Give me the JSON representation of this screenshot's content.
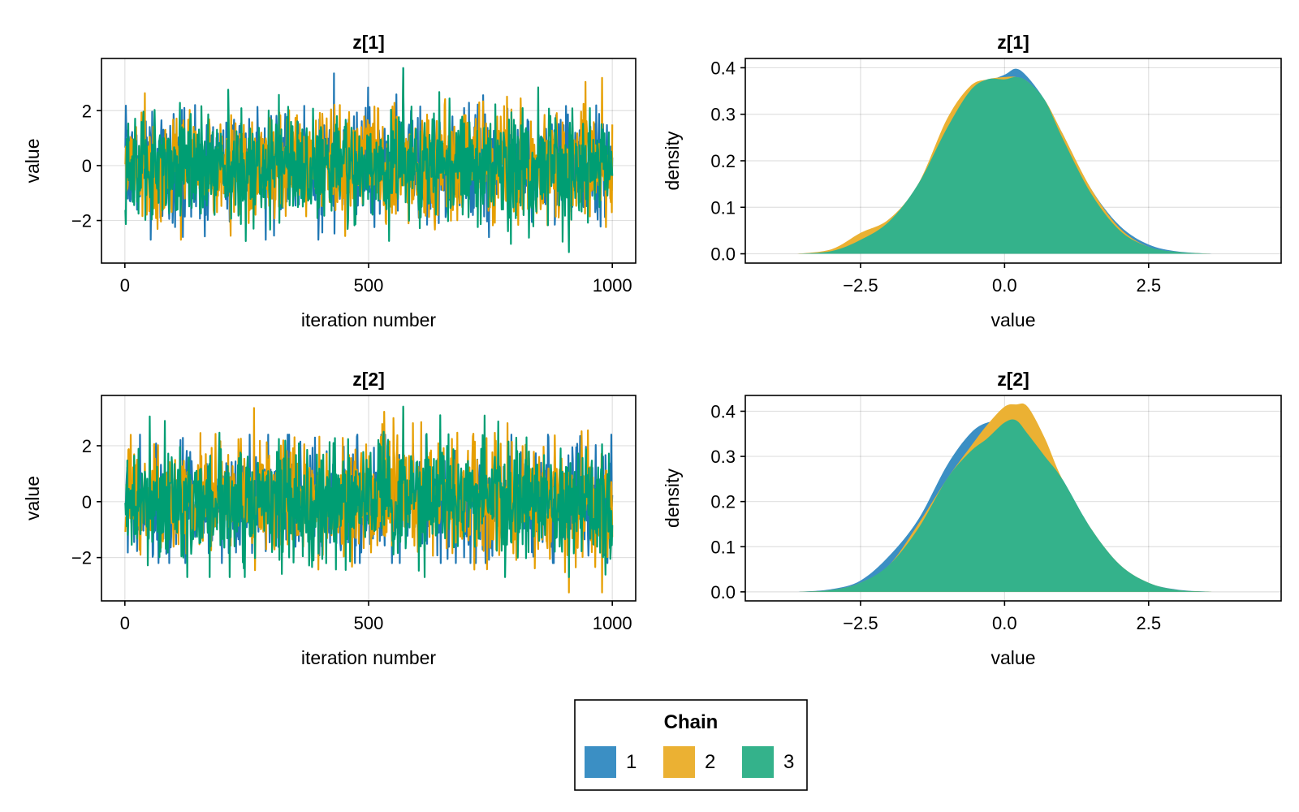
{
  "legend": {
    "title": "Chain",
    "entries": [
      {
        "label": "1",
        "color": "#3b8fc4"
      },
      {
        "label": "2",
        "color": "#ebb133"
      },
      {
        "label": "3",
        "color": "#34b28b"
      }
    ],
    "placement": "bottom-center"
  },
  "chart_data": [
    {
      "type": "line",
      "title": "z[1]",
      "xlabel": "iteration number",
      "ylabel": "value",
      "xlim": [
        -48,
        1048
      ],
      "ylim": [
        -3.55,
        3.9
      ],
      "xticks": [
        0,
        500,
        1000
      ],
      "xtick_labels": [
        "0",
        "500",
        "1000"
      ],
      "yticks": [
        -2,
        0,
        2
      ],
      "ytick_labels": [
        "−2",
        "0",
        "2"
      ],
      "grid": true,
      "n_iterations": 1000,
      "series": [
        {
          "name": "1",
          "color": "#1f77b4",
          "mean": 0.0,
          "sd": 1.0,
          "min": -2.7,
          "max": 3.55
        },
        {
          "name": "2",
          "color": "#e69f00",
          "mean": 0.0,
          "sd": 1.0,
          "min": -2.7,
          "max": 3.2
        },
        {
          "name": "3",
          "color": "#009e73",
          "mean": 0.0,
          "sd": 1.0,
          "min": -3.15,
          "max": 3.55
        }
      ]
    },
    {
      "type": "area",
      "title": "z[1]",
      "xlabel": "value",
      "ylabel": "density",
      "xlim": [
        -4.5,
        4.8
      ],
      "ylim": [
        -0.02,
        0.42
      ],
      "xticks": [
        -2.5,
        0.0,
        2.5
      ],
      "xtick_labels": [
        "−2.5",
        "0.0",
        "2.5"
      ],
      "yticks": [
        0.0,
        0.1,
        0.2,
        0.3,
        0.4
      ],
      "ytick_labels": [
        "0.0",
        "0.1",
        "0.2",
        "0.3",
        "0.4"
      ],
      "grid": true,
      "series": [
        {
          "name": "1",
          "color": "#3b8fc4",
          "x": [
            -3.6,
            -3.0,
            -2.5,
            -2.0,
            -1.5,
            -1.0,
            -0.6,
            -0.3,
            0.0,
            0.2,
            0.4,
            0.7,
            1.0,
            1.5,
            2.0,
            2.5,
            3.0,
            3.6
          ],
          "y": [
            0.0,
            0.008,
            0.035,
            0.075,
            0.14,
            0.27,
            0.35,
            0.37,
            0.385,
            0.398,
            0.38,
            0.33,
            0.26,
            0.14,
            0.06,
            0.02,
            0.005,
            0.0
          ]
        },
        {
          "name": "2",
          "color": "#ebb133",
          "x": [
            -3.6,
            -3.0,
            -2.5,
            -2.0,
            -1.5,
            -1.0,
            -0.6,
            -0.3,
            0.0,
            0.2,
            0.4,
            0.7,
            1.0,
            1.5,
            2.0,
            2.5,
            3.0,
            3.6
          ],
          "y": [
            0.0,
            0.01,
            0.045,
            0.075,
            0.15,
            0.29,
            0.36,
            0.375,
            0.38,
            0.38,
            0.37,
            0.33,
            0.26,
            0.14,
            0.055,
            0.015,
            0.004,
            0.0
          ]
        },
        {
          "name": "3",
          "color": "#34b28b",
          "x": [
            -3.6,
            -3.0,
            -2.5,
            -2.0,
            -1.5,
            -1.0,
            -0.6,
            -0.3,
            0.0,
            0.2,
            0.4,
            0.7,
            1.0,
            1.5,
            2.0,
            2.5,
            3.0,
            3.6
          ],
          "y": [
            0.0,
            0.006,
            0.03,
            0.07,
            0.15,
            0.27,
            0.35,
            0.375,
            0.375,
            0.38,
            0.37,
            0.33,
            0.25,
            0.13,
            0.05,
            0.015,
            0.004,
            0.0
          ]
        }
      ]
    },
    {
      "type": "line",
      "title": "z[2]",
      "xlabel": "iteration number",
      "ylabel": "value",
      "xlim": [
        -48,
        1048
      ],
      "ylim": [
        -3.55,
        3.8
      ],
      "xticks": [
        0,
        500,
        1000
      ],
      "xtick_labels": [
        "0",
        "500",
        "1000"
      ],
      "yticks": [
        -2,
        0,
        2
      ],
      "ytick_labels": [
        "−2",
        "0",
        "2"
      ],
      "grid": true,
      "n_iterations": 1000,
      "series": [
        {
          "name": "1",
          "color": "#1f77b4",
          "mean": 0.0,
          "sd": 1.0,
          "min": -2.2,
          "max": 2.4
        },
        {
          "name": "2",
          "color": "#e69f00",
          "mean": 0.1,
          "sd": 1.0,
          "min": -3.25,
          "max": 3.35
        },
        {
          "name": "3",
          "color": "#009e73",
          "mean": 0.0,
          "sd": 1.0,
          "min": -2.7,
          "max": 3.4
        }
      ]
    },
    {
      "type": "area",
      "title": "z[2]",
      "xlabel": "value",
      "ylabel": "density",
      "xlim": [
        -4.5,
        4.8
      ],
      "ylim": [
        -0.02,
        0.435
      ],
      "xticks": [
        -2.5,
        0.0,
        2.5
      ],
      "xtick_labels": [
        "−2.5",
        "0.0",
        "2.5"
      ],
      "yticks": [
        0.0,
        0.1,
        0.2,
        0.3,
        0.4
      ],
      "ytick_labels": [
        "0.0",
        "0.1",
        "0.2",
        "0.3",
        "0.4"
      ],
      "grid": true,
      "series": [
        {
          "name": "1",
          "color": "#3b8fc4",
          "x": [
            -3.6,
            -3.0,
            -2.5,
            -2.0,
            -1.5,
            -1.0,
            -0.6,
            -0.3,
            0.0,
            0.2,
            0.4,
            0.7,
            1.0,
            1.5,
            2.0,
            2.5,
            3.0,
            3.6
          ],
          "y": [
            0.0,
            0.006,
            0.025,
            0.08,
            0.16,
            0.28,
            0.35,
            0.375,
            0.375,
            0.36,
            0.34,
            0.3,
            0.25,
            0.14,
            0.06,
            0.02,
            0.005,
            0.0
          ]
        },
        {
          "name": "2",
          "color": "#ebb133",
          "x": [
            -3.6,
            -3.0,
            -2.5,
            -2.0,
            -1.5,
            -1.0,
            -0.6,
            -0.3,
            0.0,
            0.2,
            0.4,
            0.7,
            1.0,
            1.5,
            2.0,
            2.5,
            3.0,
            3.6
          ],
          "y": [
            0.0,
            0.004,
            0.02,
            0.06,
            0.15,
            0.25,
            0.32,
            0.37,
            0.41,
            0.415,
            0.41,
            0.34,
            0.25,
            0.14,
            0.06,
            0.02,
            0.004,
            0.0
          ]
        },
        {
          "name": "3",
          "color": "#34b28b",
          "x": [
            -3.6,
            -3.0,
            -2.5,
            -2.0,
            -1.5,
            -1.0,
            -0.6,
            -0.3,
            0.0,
            0.2,
            0.4,
            0.7,
            1.0,
            1.5,
            2.0,
            2.5,
            3.0,
            3.6
          ],
          "y": [
            0.0,
            0.004,
            0.02,
            0.06,
            0.14,
            0.25,
            0.31,
            0.34,
            0.375,
            0.38,
            0.35,
            0.3,
            0.25,
            0.14,
            0.06,
            0.02,
            0.004,
            0.0
          ]
        }
      ]
    }
  ]
}
